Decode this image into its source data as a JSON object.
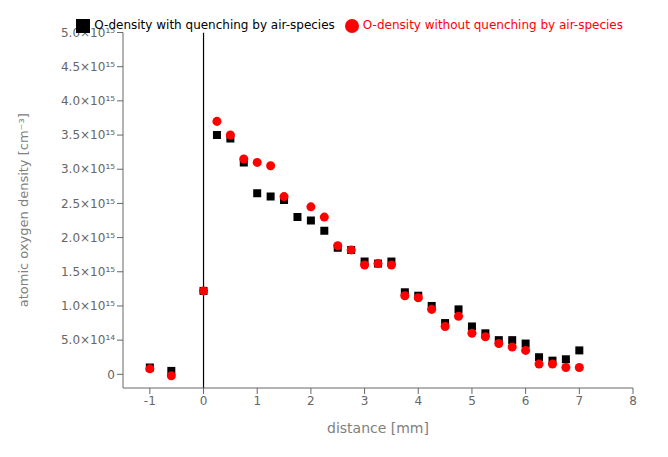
{
  "chart_data": {
    "type": "scatter",
    "xlabel": "distance [mm]",
    "ylabel": "atomic oxygen density [cm⁻³]",
    "series": [
      {
        "name": "O-density with quenching by air-species",
        "color": "black",
        "marker": "square",
        "x": [
          -1.0,
          -0.6,
          0.0,
          0.25,
          0.5,
          0.75,
          1.0,
          1.25,
          1.5,
          1.75,
          2.0,
          2.25,
          2.5,
          2.75,
          3.0,
          3.25,
          3.5,
          3.75,
          4.0,
          4.25,
          4.5,
          4.75,
          5.0,
          5.25,
          5.5,
          5.75,
          6.0,
          6.25,
          6.5,
          6.75,
          7.0
        ],
        "values": [
          100000000000000.0,
          50000000000000.0,
          1220000000000000.0,
          3500000000000000.0,
          3450000000000000.0,
          3100000000000000.0,
          2650000000000000.0,
          2600000000000000.0,
          2550000000000000.0,
          2300000000000000.0,
          2250000000000000.0,
          2100000000000000.0,
          1850000000000000.0,
          1820000000000000.0,
          1650000000000000.0,
          1620000000000000.0,
          1650000000000000.0,
          1200000000000000.0,
          1150000000000000.0,
          1000000000000000.0,
          750000000000000.0,
          950000000000000.0,
          700000000000000.0,
          600000000000000.0,
          500000000000000.0,
          500000000000000.0,
          450000000000000.0,
          250000000000000.0,
          200000000000000.0,
          220000000000000.0,
          350000000000000.0
        ]
      },
      {
        "name": "O-density without quenching by air-species",
        "color": "red",
        "marker": "circle",
        "x": [
          -1.0,
          -0.6,
          0.0,
          0.25,
          0.5,
          0.75,
          1.0,
          1.25,
          1.5,
          2.0,
          2.25,
          2.5,
          2.75,
          3.0,
          3.25,
          3.5,
          3.75,
          4.0,
          4.25,
          4.5,
          4.75,
          5.0,
          5.25,
          5.5,
          5.75,
          6.0,
          6.25,
          6.5,
          6.75,
          7.0
        ],
        "values": [
          80000000000000.0,
          -20000000000000.0,
          1220000000000000.0,
          3700000000000000.0,
          3500000000000000.0,
          3150000000000000.0,
          3100000000000000.0,
          3050000000000000.0,
          2600000000000000.0,
          2450000000000000.0,
          2300000000000000.0,
          1880000000000000.0,
          1820000000000000.0,
          1600000000000000.0,
          1620000000000000.0,
          1600000000000000.0,
          1150000000000000.0,
          1120000000000000.0,
          950000000000000.0,
          700000000000000.0,
          850000000000000.0,
          600000000000000.0,
          550000000000000.0,
          450000000000000.0,
          400000000000000.0,
          350000000000000.0,
          150000000000000.0,
          150000000000000.0,
          100000000000000.0,
          100000000000000.0
        ]
      }
    ],
    "vline_x": 0.0,
    "xlim": [
      -1.5,
      8.0
    ],
    "ylim": [
      -200000000000000.0,
      5000000000000000.0
    ],
    "xticks": [
      -1,
      0,
      1,
      2,
      3,
      4,
      5,
      6,
      7,
      8
    ],
    "yticks": [
      0,
      {
        "value": 500000000000000.0,
        "label": "5.0×10¹⁴"
      },
      {
        "value": 1000000000000000.0,
        "label": "1.0×10¹⁵"
      },
      {
        "value": 1500000000000000.0,
        "label": "1.5×10¹⁵"
      },
      {
        "value": 2000000000000000.0,
        "label": "2.0×10¹⁵"
      },
      {
        "value": 2500000000000000.0,
        "label": "2.5×10¹⁵"
      },
      {
        "value": 3000000000000000.0,
        "label": "3.0×10¹⁵"
      },
      {
        "value": 3500000000000000.0,
        "label": "3.5×10¹⁵"
      },
      {
        "value": 4000000000000000.0,
        "label": "4.0×10¹⁵"
      },
      {
        "value": 4500000000000000.0,
        "label": "4.5×10¹⁵"
      },
      {
        "value": 5000000000000000.0,
        "label": "5.0×10¹⁵"
      }
    ],
    "grid": false,
    "legend": "upper right"
  }
}
